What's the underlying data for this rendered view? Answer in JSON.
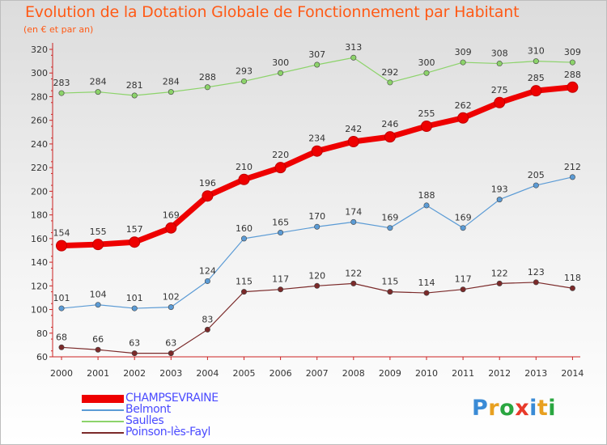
{
  "title": "Evolution de la Dotation Globale de Fonctionnement par Habitant",
  "subtitle": "(en € et par an)",
  "logo": {
    "text": "Proxiti",
    "colors": [
      "#3a8bd6",
      "#e8a020",
      "#2aa640",
      "#e83a2a",
      "#3a8bd6",
      "#e8a020",
      "#2aa640"
    ]
  },
  "chart_data": {
    "type": "line",
    "title": "Evolution de la Dotation Globale de Fonctionnement par Habitant",
    "subtitle": "(en € et par an)",
    "x": [
      "2000",
      "2001",
      "2002",
      "2003",
      "2004",
      "2005",
      "2006",
      "2007",
      "2008",
      "2009",
      "2010",
      "2011",
      "2012",
      "2013",
      "2014"
    ],
    "ylim": [
      60,
      320
    ],
    "yticks": [
      60,
      80,
      100,
      120,
      140,
      160,
      180,
      200,
      220,
      240,
      260,
      280,
      300,
      320
    ],
    "grid": false,
    "legend_position": "bottom-left",
    "series": [
      {
        "name": "CHAMPSEVRAINE",
        "color": "#ee0000",
        "emphasis": true,
        "values": [
          154,
          155,
          157,
          169,
          196,
          210,
          220,
          234,
          242,
          246,
          255,
          262,
          275,
          285,
          288
        ]
      },
      {
        "name": "Belmont",
        "color": "#5b9bd5",
        "values": [
          101,
          104,
          101,
          102,
          124,
          160,
          165,
          170,
          174,
          169,
          188,
          169,
          193,
          205,
          212
        ]
      },
      {
        "name": "Saulles",
        "color": "#8cd36a",
        "values": [
          283,
          284,
          281,
          284,
          288,
          293,
          300,
          307,
          313,
          292,
          300,
          309,
          308,
          310,
          309
        ]
      },
      {
        "name": "Poinson-lès-Fayl",
        "color": "#7b2a2a",
        "values": [
          68,
          66,
          63,
          63,
          83,
          115,
          117,
          120,
          122,
          115,
          114,
          117,
          122,
          123,
          118
        ]
      }
    ]
  }
}
